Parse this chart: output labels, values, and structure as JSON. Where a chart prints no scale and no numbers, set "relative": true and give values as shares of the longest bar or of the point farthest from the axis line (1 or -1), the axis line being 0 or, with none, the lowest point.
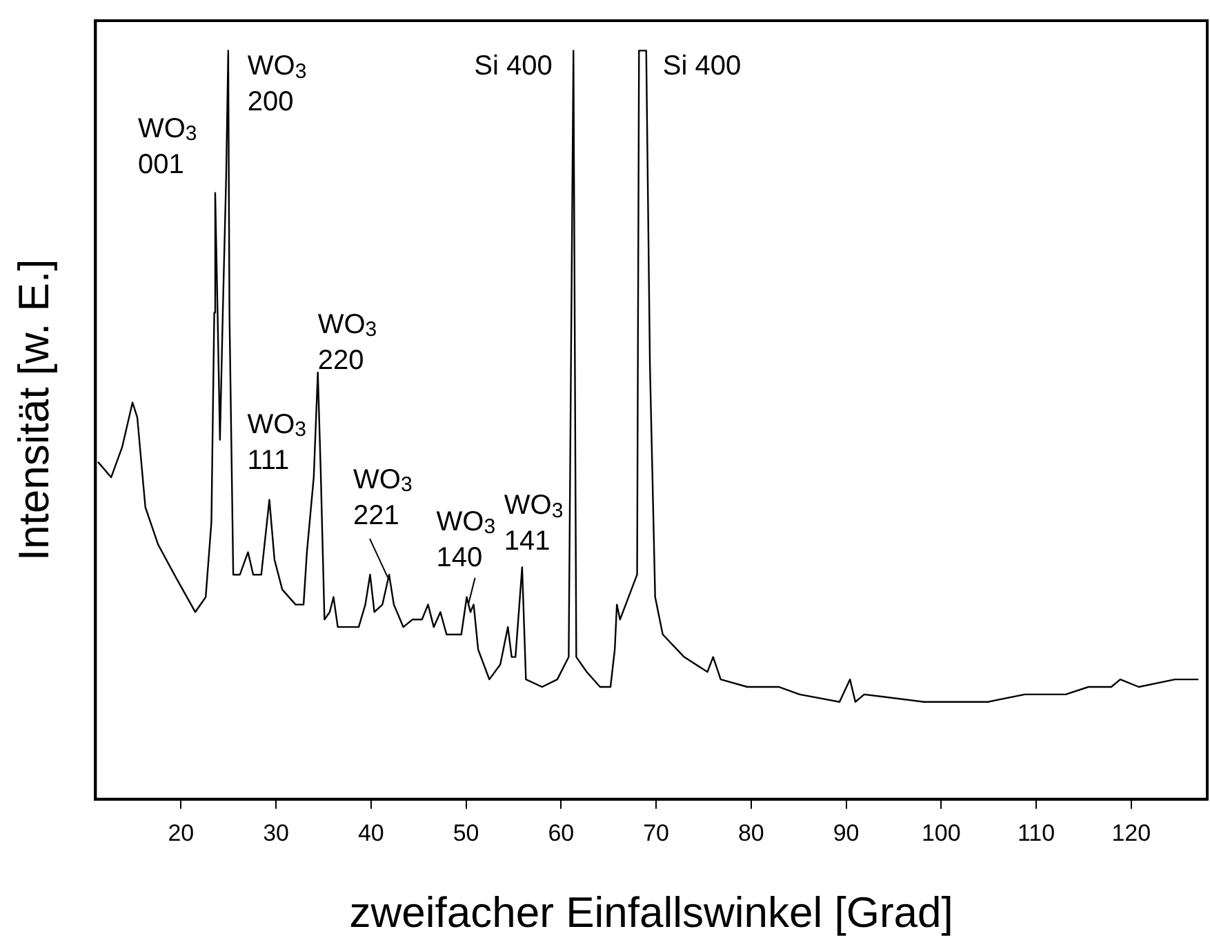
{
  "chart_data": {
    "type": "line",
    "relative": true,
    "xlabel": "zweifacher Einfallswinkel [Grad]",
    "ylabel": "Intensität [w. E.]",
    "xlim": [
      11,
      128
    ],
    "xticks": [
      20,
      30,
      40,
      50,
      60,
      70,
      80,
      90,
      100,
      110,
      120
    ],
    "grid": false,
    "legend": false,
    "marker": "none",
    "line_style": "solid",
    "series": [
      {
        "color": "#000000",
        "x": [
          11.3,
          12.65,
          13.8,
          14.9,
          15.4,
          16.25,
          17.6,
          19.3,
          21.5,
          22.6,
          23.2,
          23.5,
          23.6,
          23.85,
          24.1,
          24.4,
          24.75,
          24.97,
          25.1,
          25.5,
          26.2,
          27.05,
          27.6,
          28.45,
          29.3,
          29.84,
          30.66,
          32.06,
          32.9,
          33.25,
          33.97,
          34.4,
          34.7,
          35.1,
          35.65,
          36.05,
          36.5,
          38.7,
          39.4,
          39.9,
          40.35,
          41.2,
          41.9,
          42.4,
          43.4,
          44.35,
          45.36,
          46.0,
          46.6,
          47.3,
          47.95,
          49.5,
          50.07,
          50.46,
          50.8,
          51.27,
          52.45,
          53.6,
          54.4,
          54.8,
          55.2,
          55.9,
          56.3,
          58.0,
          59.6,
          60.8,
          61.3,
          61.6,
          62.7,
          64.1,
          65.2,
          65.65,
          65.87,
          66.2,
          67.4,
          68.0,
          68.2,
          68.96,
          69.35,
          69.9,
          70.7,
          72.95,
          75.4,
          76.0,
          76.8,
          79.6,
          81.25,
          82.9,
          85.1,
          89.3,
          90.4,
          90.97,
          91.9,
          98.2,
          104.9,
          108.8,
          113.1,
          115.5,
          117.9,
          118.85,
          120.8,
          124.6,
          127.0
        ],
        "values": [
          0.45,
          0.43,
          0.47,
          0.53,
          0.51,
          0.39,
          0.34,
          0.3,
          0.25,
          0.27,
          0.37,
          0.65,
          0.81,
          0.65,
          0.48,
          0.65,
          0.83,
          1.0,
          0.65,
          0.3,
          0.3,
          0.33,
          0.3,
          0.3,
          0.4,
          0.32,
          0.28,
          0.26,
          0.26,
          0.33,
          0.43,
          0.57,
          0.44,
          0.24,
          0.25,
          0.27,
          0.23,
          0.23,
          0.26,
          0.3,
          0.25,
          0.26,
          0.3,
          0.26,
          0.23,
          0.24,
          0.24,
          0.26,
          0.23,
          0.25,
          0.22,
          0.22,
          0.27,
          0.25,
          0.26,
          0.2,
          0.16,
          0.18,
          0.23,
          0.19,
          0.19,
          0.31,
          0.16,
          0.15,
          0.16,
          0.19,
          1.0,
          0.19,
          0.17,
          0.15,
          0.15,
          0.2,
          0.26,
          0.24,
          0.28,
          0.3,
          1.0,
          1.0,
          0.58,
          0.27,
          0.22,
          0.19,
          0.17,
          0.19,
          0.16,
          0.15,
          0.15,
          0.15,
          0.14,
          0.13,
          0.16,
          0.13,
          0.14,
          0.13,
          0.13,
          0.14,
          0.14,
          0.15,
          0.15,
          0.16,
          0.15,
          0.16,
          0.16
        ]
      }
    ],
    "annotations": [
      {
        "text": "WO$_{3}$\n001",
        "x": 23.6,
        "y": 0.81
      },
      {
        "text": "WO$_{3}$\n200",
        "x": 24.97,
        "y": 1.0
      },
      {
        "text": "WO$_{3}$\n111",
        "x": 29.3,
        "y": 0.4
      },
      {
        "text": "WO$_{3}$\n220",
        "x": 34.4,
        "y": 0.57
      },
      {
        "text": "WO$_{3}$\n221",
        "x": 41.9,
        "y": 0.3
      },
      {
        "text": "WO$_{3}$\n140",
        "x": 50.07,
        "y": 0.27
      },
      {
        "text": "WO$_{3}$\n141",
        "x": 55.9,
        "y": 0.31
      },
      {
        "text": "Si 400",
        "x": 61.3,
        "y": 1.0
      },
      {
        "text": "Si 400",
        "x": 68.96,
        "y": 1.0
      }
    ]
  }
}
